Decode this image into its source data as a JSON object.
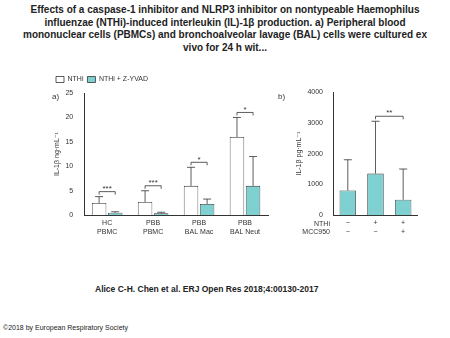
{
  "title": "Effects of a caspase-1 inhibitor and NLRP3 inhibitor on nontypeable Haemophilus influenzae (NTHi)-induced interleukin (IL)-1β production. a) Peripheral blood mononuclear cells (PBMCs) and bronchoalveolar lavage (BAL) cells were cultured ex vivo for 24 h wit...",
  "footer": "Alice C-H. Chen et al. ERJ Open Res 2018;4:00130-2017",
  "copyright": "©2018 by European Respiratory Society",
  "chart_data": [
    {
      "type": "bar",
      "panel": "a)",
      "y_label": "IL-1β ng·mL⁻¹",
      "categories": [
        [
          "HC",
          "PBMC"
        ],
        [
          "PBB",
          "PBMC"
        ],
        [
          "PBB",
          "BAL Mac"
        ],
        [
          "PBB",
          "BAL Neut"
        ]
      ],
      "series": [
        {
          "name": "NTHi",
          "color": "#ffffff",
          "values": [
            2.5,
            2.7,
            6,
            16
          ],
          "errors": [
            1.3,
            2.3,
            3.8,
            4
          ]
        },
        {
          "name": "NTHi + Z-YVAD",
          "color": "#7fd1d1",
          "values": [
            0.5,
            0.4,
            2.3,
            6
          ],
          "errors": [
            0.2,
            0.2,
            1,
            6
          ]
        }
      ],
      "ylim": [
        0,
        25
      ],
      "yticks": [
        0,
        5,
        10,
        15,
        20,
        25
      ],
      "grid": false,
      "legend": "top-left",
      "annotations": [
        {
          "text": "***",
          "from": [
            0,
            0
          ],
          "to": [
            1,
            0
          ]
        },
        {
          "text": "***",
          "from": [
            0,
            1
          ],
          "to": [
            1,
            1
          ]
        },
        {
          "text": "*",
          "from": [
            0,
            2
          ],
          "to": [
            1,
            2
          ]
        },
        {
          "text": "*",
          "from": [
            0,
            3
          ],
          "to": [
            1,
            3
          ]
        }
      ]
    },
    {
      "type": "bar",
      "panel": "b)",
      "y_label": "IL-1β pg·mL⁻¹",
      "categories": [
        [
          "−",
          "−"
        ],
        [
          "+",
          "−"
        ],
        [
          "+",
          "+"
        ]
      ],
      "row_labels": [
        "NTHi",
        "MCC950"
      ],
      "color": "#7fd1d1",
      "values": [
        800,
        1350,
        500
      ],
      "errors": [
        1000,
        1700,
        1000
      ],
      "ylim": [
        0,
        4000
      ],
      "yticks": [
        0,
        1000,
        2000,
        3000,
        4000
      ],
      "grid": false,
      "annotations": [
        {
          "text": "**",
          "from": [
            0,
            1
          ],
          "to": [
            0,
            2
          ]
        }
      ]
    }
  ]
}
